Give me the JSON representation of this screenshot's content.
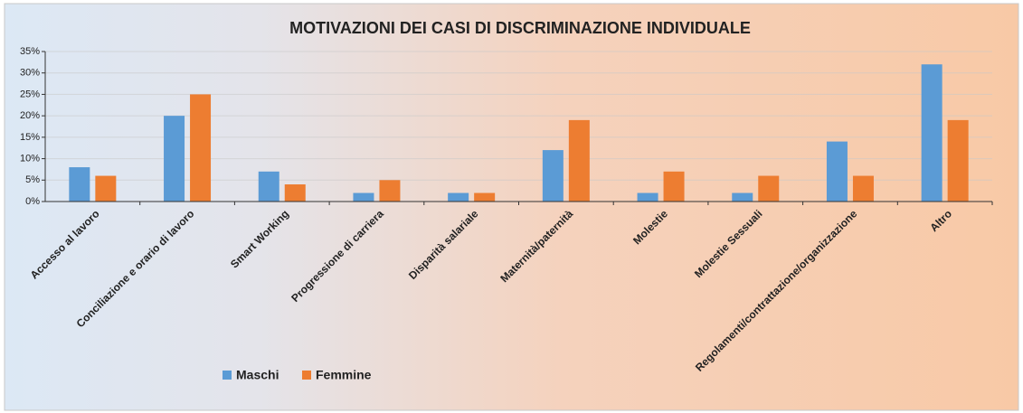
{
  "chart_data": {
    "type": "bar",
    "title": "MOTIVAZIONI DEI CASI DI DISCRIMINAZIONE INDIVIDUALE",
    "categories": [
      "Accesso al lavoro",
      "Conciliazione e orario di lavoro",
      "Smart Working",
      "Progressione di carriera",
      "Disparità salariale",
      "Maternità/paternità",
      "Molestie",
      "Molestie Sessuali",
      "Regolamenti/contrattazione/organizzazione",
      "Altro"
    ],
    "series": [
      {
        "name": "Maschi",
        "color": "#5b9bd5",
        "values": [
          8,
          20,
          7,
          2,
          2,
          12,
          2,
          2,
          14,
          32
        ]
      },
      {
        "name": "Femmine",
        "color": "#ed7d31",
        "values": [
          6,
          25,
          4,
          5,
          2,
          19,
          7,
          6,
          6,
          19
        ]
      }
    ],
    "ylim": [
      0,
      35
    ],
    "yticks": [
      {
        "value": 0,
        "label": "0%"
      },
      {
        "value": 5,
        "label": "5%"
      },
      {
        "value": 10,
        "label": "10%"
      },
      {
        "value": 15,
        "label": "15%"
      },
      {
        "value": 20,
        "label": "20%"
      },
      {
        "value": 25,
        "label": "25%"
      },
      {
        "value": 30,
        "label": "30%"
      },
      {
        "value": 35,
        "label": "35%"
      }
    ],
    "grid": true,
    "legend": "bottom"
  }
}
